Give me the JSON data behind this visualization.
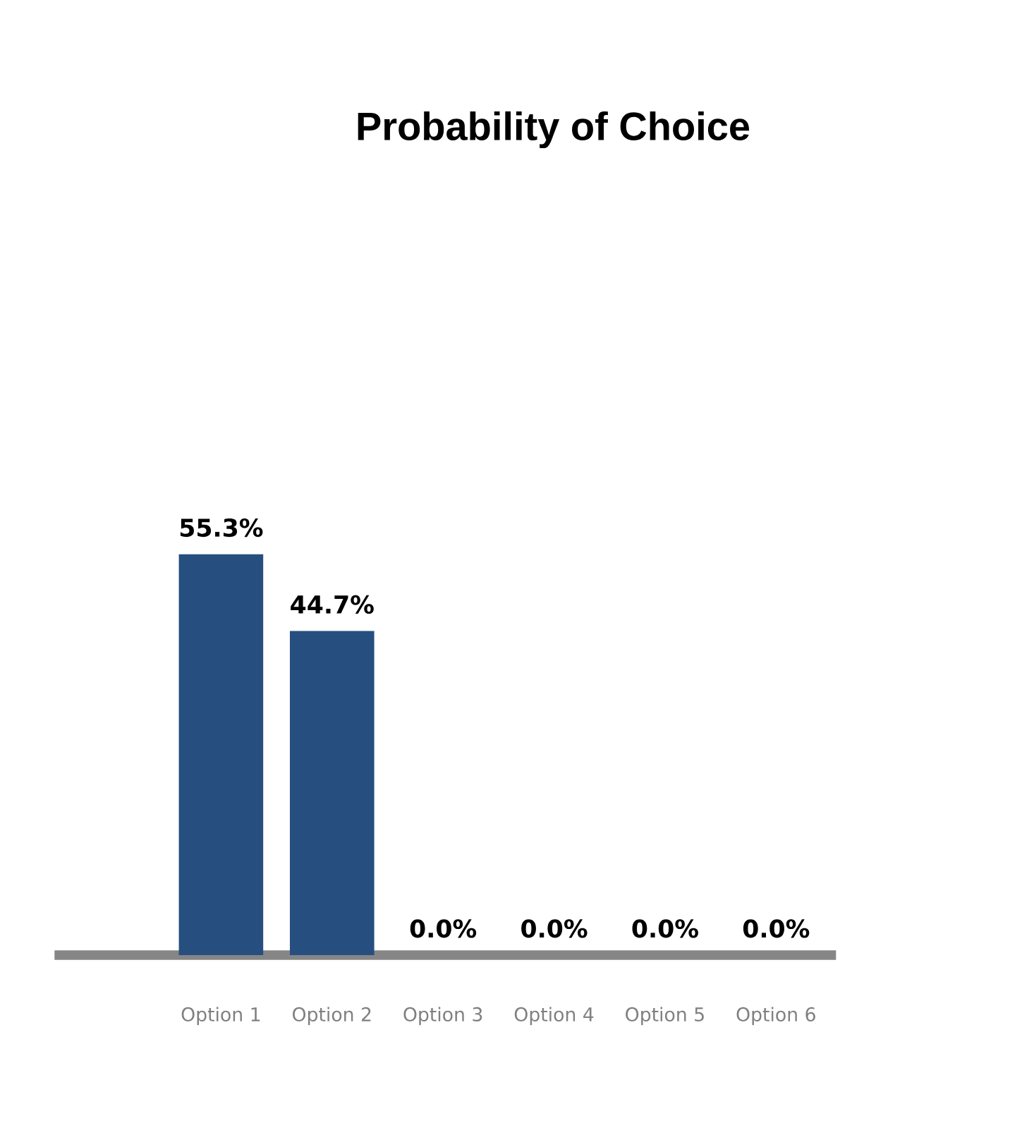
{
  "chart_data": {
    "type": "bar",
    "title": "Probability of Choice",
    "categories": [
      null,
      "Option 1",
      "Option 2",
      "Option 3",
      "Option 4",
      "Option 5",
      "Option 6"
    ],
    "values": [
      null,
      55.3,
      44.7,
      0.0,
      0.0,
      0.0,
      0.0
    ],
    "value_labels": [
      null,
      "55.3%",
      "44.7%",
      "0.0%",
      "0.0%",
      "0.0%",
      "0.0%"
    ],
    "color": "#264f80"
  }
}
